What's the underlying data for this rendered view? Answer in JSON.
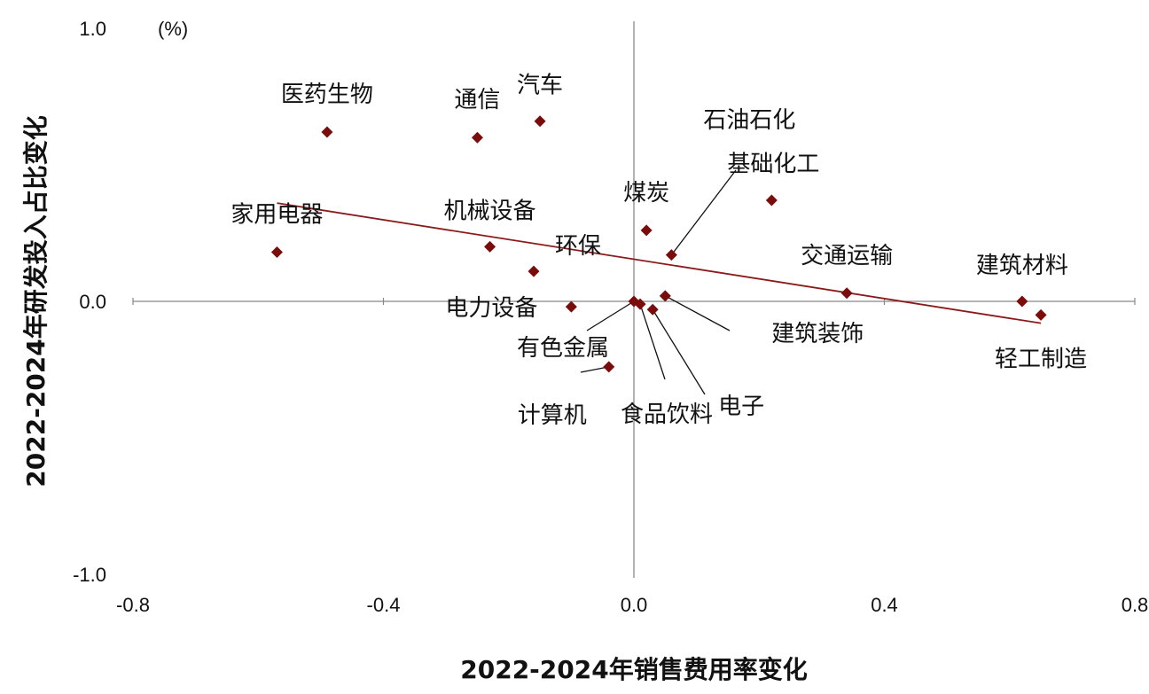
{
  "chart_data": {
    "type": "scatter",
    "xlabel": "2022-2024年销售费用率变化",
    "ylabel": "2022-2024年研发投入占比变化",
    "unit": "(%)",
    "xlim": [
      -0.8,
      0.8
    ],
    "ylim": [
      -1.0,
      1.0
    ],
    "xticks": [
      "-0.8",
      "-0.4",
      "0.0",
      "0.4",
      "0.8"
    ],
    "yticks": [
      "1.0",
      "0.0",
      "-1.0"
    ],
    "grid": false,
    "marker_color": "#7B0C0C",
    "trendline_color": "#8B1A1A",
    "points": [
      {
        "name": "医药生物",
        "x": -0.49,
        "y": 0.62
      },
      {
        "name": "通信",
        "x": -0.25,
        "y": 0.6
      },
      {
        "name": "汽车",
        "x": -0.15,
        "y": 0.66
      },
      {
        "name": "家用电器",
        "x": -0.57,
        "y": 0.18
      },
      {
        "name": "机械设备",
        "x": -0.23,
        "y": 0.2
      },
      {
        "name": "环保",
        "x": -0.16,
        "y": 0.11
      },
      {
        "name": "煤炭",
        "x": 0.02,
        "y": 0.26
      },
      {
        "name": "基础化工",
        "x": 0.06,
        "y": 0.17
      },
      {
        "name": "石油石化",
        "x": 0.22,
        "y": 0.37
      },
      {
        "name": "交通运输",
        "x": 0.34,
        "y": 0.03
      },
      {
        "name": "建筑材料",
        "x": 0.62,
        "y": 0.0
      },
      {
        "name": "轻工制造",
        "x": 0.65,
        "y": -0.05
      },
      {
        "name": "电力设备",
        "x": -0.1,
        "y": -0.02
      },
      {
        "name": "有色金属",
        "x": 0.0,
        "y": 0.0
      },
      {
        "name": "计算机",
        "x": -0.04,
        "y": -0.24
      },
      {
        "name": "食品饮料",
        "x": 0.01,
        "y": -0.01
      },
      {
        "name": "电子",
        "x": 0.03,
        "y": -0.03
      },
      {
        "name": "建筑装饰",
        "x": 0.05,
        "y": 0.02
      }
    ],
    "trendline": {
      "x": [
        -0.57,
        0.65
      ],
      "y": [
        0.36,
        -0.08
      ]
    }
  }
}
